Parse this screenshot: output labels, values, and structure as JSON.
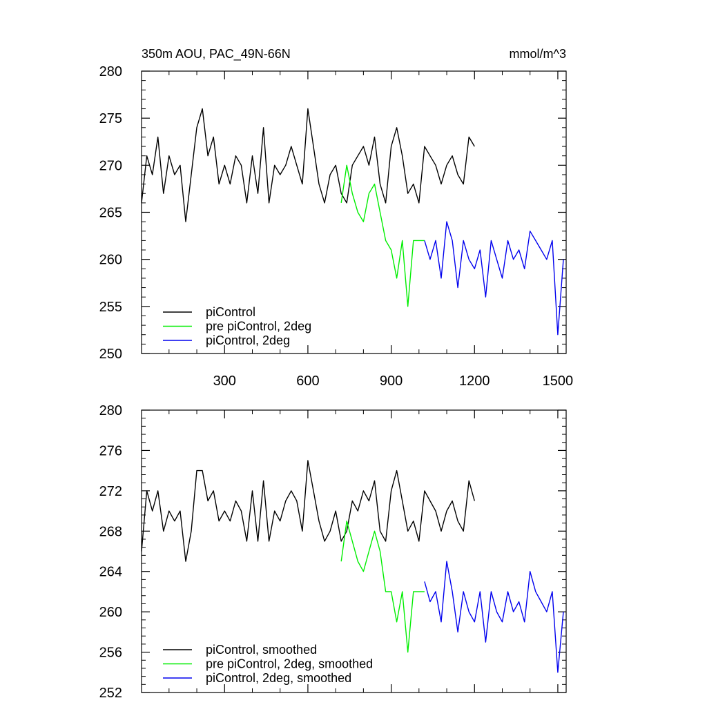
{
  "figure": {
    "title_left": "350m AOU, PAC_49N-66N",
    "title_right": "mmol/m^3"
  },
  "chart_data": [
    {
      "type": "line",
      "xlim": [
        1,
        1530
      ],
      "ylim": [
        250,
        280
      ],
      "grid": false,
      "legend_position": "bottom-left",
      "x_ticks": [
        300,
        600,
        900,
        1200,
        1500
      ],
      "x_tick_labels": [
        "300",
        "600",
        "900",
        "1200",
        "1500"
      ],
      "y_ticks": [
        250,
        255,
        260,
        265,
        270,
        275,
        280
      ],
      "y_tick_labels": [
        "250",
        "255",
        "260",
        "265",
        "270",
        "275",
        "280"
      ],
      "series": [
        {
          "name": "piControl",
          "color": "#000000",
          "x": [
            1,
            20,
            40,
            60,
            80,
            100,
            120,
            140,
            160,
            180,
            200,
            220,
            240,
            260,
            280,
            300,
            320,
            340,
            360,
            380,
            400,
            420,
            440,
            460,
            480,
            500,
            520,
            540,
            560,
            580,
            600,
            620,
            640,
            660,
            680,
            700,
            720,
            740,
            760,
            780,
            800,
            820,
            840,
            860,
            880,
            900,
            920,
            940,
            960,
            980,
            1000,
            1020,
            1040,
            1060,
            1080,
            1100,
            1120,
            1140,
            1160,
            1180,
            1200
          ],
          "values": [
            266,
            271,
            269,
            273,
            267,
            271,
            269,
            270,
            264,
            269,
            274,
            276,
            271,
            273,
            268,
            270,
            268,
            271,
            270,
            266,
            271,
            267,
            274,
            266,
            270,
            269,
            270,
            272,
            270,
            268,
            276,
            272,
            268,
            266,
            269,
            270,
            267,
            266,
            270,
            271,
            272,
            270,
            273,
            268,
            266,
            272,
            274,
            271,
            267,
            268,
            266,
            272,
            271,
            270,
            268,
            270,
            271,
            269,
            268,
            273,
            272
          ]
        },
        {
          "name": "pre piControl, 2deg",
          "color": "#00ee00",
          "x": [
            720,
            740,
            760,
            780,
            800,
            820,
            840,
            860,
            880,
            900,
            920,
            940,
            960,
            980,
            1000,
            1020
          ],
          "values": [
            266,
            270,
            267,
            265,
            264,
            267,
            268,
            265,
            262,
            261,
            258,
            262,
            255,
            262,
            262,
            262
          ]
        },
        {
          "name": "piControl, 2deg",
          "color": "#0000ee",
          "x": [
            1020,
            1040,
            1060,
            1080,
            1100,
            1120,
            1140,
            1160,
            1180,
            1200,
            1220,
            1240,
            1260,
            1280,
            1300,
            1320,
            1340,
            1360,
            1380,
            1400,
            1420,
            1440,
            1460,
            1480,
            1500,
            1520
          ],
          "values": [
            262,
            260,
            262,
            258,
            264,
            262,
            257,
            262,
            260,
            259,
            261,
            256,
            262,
            260,
            258,
            262,
            260,
            261,
            259,
            263,
            262,
            261,
            260,
            262,
            252,
            260
          ]
        }
      ]
    },
    {
      "type": "line",
      "xlim": [
        1,
        1530
      ],
      "ylim": [
        252,
        280
      ],
      "grid": false,
      "legend_position": "bottom-left",
      "x_ticks": [
        300,
        600,
        900,
        1200,
        1500
      ],
      "x_tick_labels": [],
      "y_ticks": [
        252,
        256,
        260,
        264,
        268,
        272,
        276,
        280
      ],
      "y_tick_labels": [
        "252",
        "256",
        "260",
        "264",
        "268",
        "272",
        "276",
        "280"
      ],
      "series": [
        {
          "name": "piControl, smoothed",
          "color": "#000000",
          "x": [
            1,
            20,
            40,
            60,
            80,
            100,
            120,
            140,
            160,
            180,
            200,
            220,
            240,
            260,
            280,
            300,
            320,
            340,
            360,
            380,
            400,
            420,
            440,
            460,
            480,
            500,
            520,
            540,
            560,
            580,
            600,
            620,
            640,
            660,
            680,
            700,
            720,
            740,
            760,
            780,
            800,
            820,
            840,
            860,
            880,
            900,
            920,
            940,
            960,
            980,
            1000,
            1020,
            1040,
            1060,
            1080,
            1100,
            1120,
            1140,
            1160,
            1180,
            1200
          ],
          "values": [
            266,
            272,
            270,
            272,
            268,
            270,
            269,
            270,
            265,
            268,
            274,
            274,
            271,
            272,
            269,
            270,
            269,
            271,
            270,
            267,
            272,
            267,
            273,
            267,
            270,
            269,
            271,
            272,
            271,
            268,
            275,
            272,
            269,
            267,
            268,
            270,
            267,
            268,
            271,
            270,
            272,
            271,
            273,
            268,
            267,
            272,
            274,
            271,
            268,
            269,
            267,
            272,
            271,
            270,
            268,
            270,
            271,
            269,
            268,
            273,
            271
          ]
        },
        {
          "name": "pre piControl, 2deg, smoothed",
          "color": "#00ee00",
          "x": [
            720,
            740,
            760,
            780,
            800,
            820,
            840,
            860,
            880,
            900,
            920,
            940,
            960,
            980,
            1000,
            1020
          ],
          "values": [
            265,
            269,
            267,
            265,
            264,
            266,
            268,
            266,
            262,
            262,
            259,
            262,
            256,
            262,
            262,
            262
          ]
        },
        {
          "name": "piControl, 2deg, smoothed",
          "color": "#0000ee",
          "x": [
            1020,
            1040,
            1060,
            1080,
            1100,
            1120,
            1140,
            1160,
            1180,
            1200,
            1220,
            1240,
            1260,
            1280,
            1300,
            1320,
            1340,
            1360,
            1380,
            1400,
            1420,
            1440,
            1460,
            1480,
            1500,
            1520
          ],
          "values": [
            263,
            261,
            262,
            259,
            265,
            262,
            258,
            262,
            260,
            259,
            262,
            257,
            262,
            260,
            259,
            262,
            260,
            261,
            259,
            264,
            262,
            261,
            260,
            262,
            254,
            260
          ]
        }
      ]
    }
  ]
}
